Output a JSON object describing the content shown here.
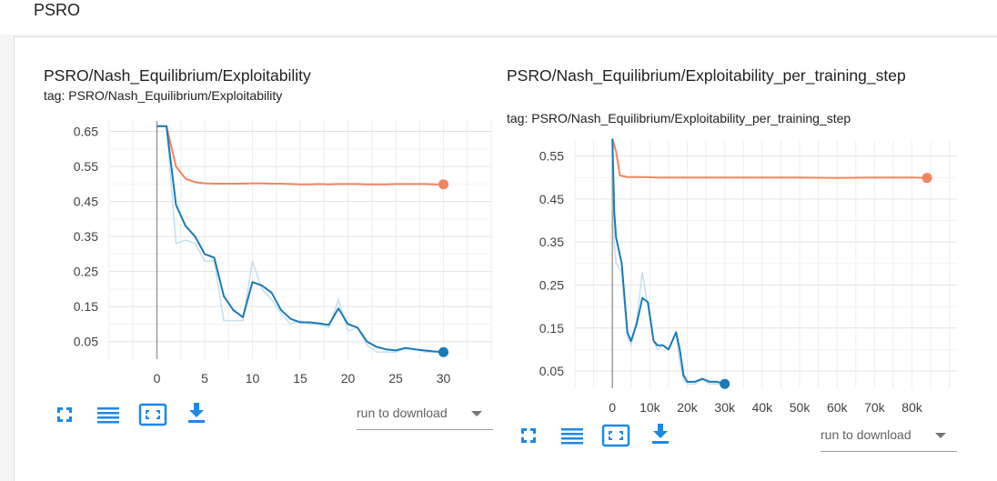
{
  "section": {
    "title": "PSRO"
  },
  "colors": {
    "orange": "#f4845f",
    "blue": "#1a7ab8",
    "blue_raw": "#c5dff0",
    "grid": "#e0e0e0",
    "icon": "#1e88e5"
  },
  "icons": {
    "expand": "fullscreen-icon",
    "log_scale": "list-icon",
    "fit": "fit-domain-icon",
    "download": "download-icon"
  },
  "cards": [
    {
      "title": "PSRO/Nash_Equilibrium/Exploitability",
      "tag": "tag: PSRO/Nash_Equilibrium/Exploitability",
      "download_label": "run to download"
    },
    {
      "title": "PSRO/Nash_Equilibrium/Exploitability_per_training_step",
      "tag": "tag: PSRO/Nash_Equilibrium/Exploitability_per_training_step",
      "download_label": "run to download"
    }
  ],
  "chart_data": [
    {
      "type": "line",
      "title": "PSRO/Nash_Equilibrium/Exploitability",
      "xlabel": "",
      "ylabel": "",
      "xlim": [
        -5,
        35
      ],
      "ylim": [
        0,
        0.68
      ],
      "xticks": [
        0,
        5,
        10,
        15,
        20,
        25,
        30
      ],
      "xtick_labels": [
        "0",
        "5",
        "10",
        "15",
        "20",
        "25",
        "30"
      ],
      "yticks": [
        0.05,
        0.15,
        0.25,
        0.35,
        0.45,
        0.55,
        0.65
      ],
      "ytick_labels": [
        "0.05",
        "0.15",
        "0.25",
        "0.35",
        "0.45",
        "0.55",
        "0.65"
      ],
      "grid": true,
      "series": [
        {
          "color": "#f4845f",
          "x": [
            0,
            1,
            2,
            3,
            4,
            5,
            6,
            7,
            8,
            9,
            10,
            11,
            12,
            13,
            14,
            15,
            16,
            17,
            18,
            19,
            20,
            21,
            22,
            23,
            24,
            25,
            26,
            27,
            28,
            29,
            30
          ],
          "values": [
            0.665,
            0.665,
            0.55,
            0.515,
            0.505,
            0.502,
            0.501,
            0.501,
            0.501,
            0.501,
            0.502,
            0.502,
            0.501,
            0.501,
            0.5,
            0.499,
            0.499,
            0.5,
            0.499,
            0.5,
            0.5,
            0.5,
            0.499,
            0.499,
            0.499,
            0.5,
            0.5,
            0.5,
            0.5,
            0.499,
            0.499
          ]
        },
        {
          "color": "#1a7ab8",
          "raw": [
            0.665,
            0.665,
            0.33,
            0.34,
            0.33,
            0.28,
            0.28,
            0.11,
            0.11,
            0.11,
            0.28,
            0.2,
            0.17,
            0.13,
            0.1,
            0.11,
            0.1,
            0.1,
            0.09,
            0.17,
            0.08,
            0.09,
            0.04,
            0.02,
            0.02,
            0.02,
            0.03,
            0.03,
            0.02,
            0.02,
            0.02
          ],
          "x": [
            0,
            1,
            2,
            3,
            4,
            5,
            6,
            7,
            8,
            9,
            10,
            11,
            12,
            13,
            14,
            15,
            16,
            17,
            18,
            19,
            20,
            21,
            22,
            23,
            24,
            25,
            26,
            27,
            28,
            29,
            30
          ],
          "values": [
            0.665,
            0.665,
            0.44,
            0.38,
            0.35,
            0.3,
            0.29,
            0.18,
            0.14,
            0.12,
            0.22,
            0.21,
            0.19,
            0.14,
            0.115,
            0.105,
            0.105,
            0.102,
            0.098,
            0.145,
            0.1,
            0.09,
            0.05,
            0.035,
            0.028,
            0.025,
            0.032,
            0.028,
            0.025,
            0.022,
            0.02
          ]
        }
      ]
    },
    {
      "type": "line",
      "title": "PSRO/Nash_Equilibrium/Exploitability_per_training_step",
      "xlabel": "",
      "ylabel": "",
      "xlim": [
        -10000,
        92000
      ],
      "ylim": [
        0.01,
        0.585
      ],
      "xticks": [
        0,
        10000,
        20000,
        30000,
        40000,
        50000,
        60000,
        70000,
        80000
      ],
      "xtick_labels": [
        "0",
        "10k",
        "20k",
        "30k",
        "40k",
        "50k",
        "60k",
        "70k",
        "80k"
      ],
      "yticks": [
        0.05,
        0.15,
        0.25,
        0.35,
        0.45,
        0.55
      ],
      "ytick_labels": [
        "0.05",
        "0.15",
        "0.25",
        "0.35",
        "0.45",
        "0.55"
      ],
      "grid": true,
      "series": [
        {
          "color": "#f4845f",
          "x": [
            0,
            1000,
            2000,
            4000,
            8000,
            12000,
            20000,
            30000,
            40000,
            50000,
            60000,
            70000,
            80000,
            84000
          ],
          "values": [
            0.59,
            0.56,
            0.505,
            0.501,
            0.501,
            0.5,
            0.5,
            0.5,
            0.5,
            0.5,
            0.499,
            0.5,
            0.5,
            0.499
          ]
        },
        {
          "color": "#1a7ab8",
          "raw": [
            0.59,
            0.35,
            0.3,
            0.28,
            0.13,
            0.11,
            0.17,
            0.28,
            0.2,
            0.12,
            0.1,
            0.11,
            0.1,
            0.14,
            0.07,
            0.03,
            0.02,
            0.02,
            0.03,
            0.02,
            0.02,
            0.018
          ],
          "x": [
            0,
            500,
            1000,
            2500,
            4000,
            5000,
            6500,
            8000,
            9500,
            11000,
            12000,
            13500,
            15000,
            17000,
            18000,
            19000,
            20000,
            22000,
            24000,
            26000,
            28000,
            30000
          ],
          "values": [
            0.59,
            0.42,
            0.36,
            0.3,
            0.14,
            0.12,
            0.16,
            0.22,
            0.21,
            0.12,
            0.11,
            0.11,
            0.1,
            0.14,
            0.1,
            0.04,
            0.025,
            0.025,
            0.032,
            0.025,
            0.025,
            0.02
          ]
        }
      ]
    }
  ]
}
